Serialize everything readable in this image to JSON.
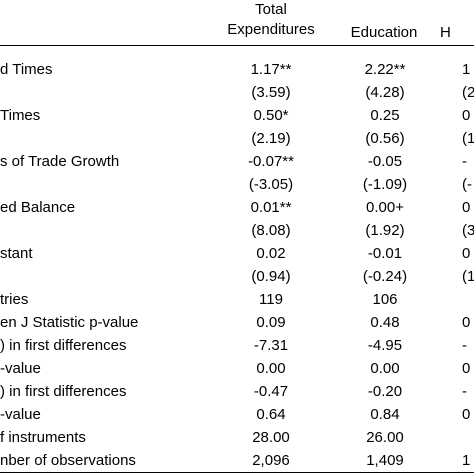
{
  "headers": {
    "total_line1": "Total",
    "total_line2": "Expenditures",
    "education": "Education",
    "third": "H"
  },
  "rows": [
    {
      "label": "d Times",
      "total": "1.17**",
      "education": "2.22**",
      "third": "1"
    },
    {
      "label": "",
      "total": "(3.59)",
      "education": "(4.28)",
      "third": "(2"
    },
    {
      "label": "Times",
      "total": "0.50*",
      "education": "0.25",
      "third": "0"
    },
    {
      "label": "",
      "total": "(2.19)",
      "education": "(0.56)",
      "third": "(1"
    },
    {
      "label": "s of Trade Growth",
      "total": "-0.07**",
      "education": "-0.05",
      "third": "-"
    },
    {
      "label": "",
      "total": "(-3.05)",
      "education": "(-1.09)",
      "third": "(-"
    },
    {
      "label": "ed Balance",
      "total": "0.01**",
      "education": "0.00+",
      "third": "0"
    },
    {
      "label": "",
      "total": "(8.08)",
      "education": "(1.92)",
      "third": "(3"
    },
    {
      "label": "stant",
      "total": "0.02",
      "education": "-0.01",
      "third": "0"
    },
    {
      "label": "",
      "total": "(0.94)",
      "education": "(-0.24)",
      "third": "(1"
    },
    {
      "label": "tries",
      "total": "119",
      "education": "106",
      "third": ""
    },
    {
      "label": "en J Statistic p-value",
      "total": "0.09",
      "education": "0.48",
      "third": "0"
    },
    {
      "label": ") in first differences",
      "total": "-7.31",
      "education": "-4.95",
      "third": "-"
    },
    {
      "label": "-value",
      "total": "0.00",
      "education": "0.00",
      "third": "0"
    },
    {
      "label": ") in first differences",
      "total": "-0.47",
      "education": "-0.20",
      "third": "-"
    },
    {
      "label": "-value",
      "total": "0.64",
      "education": "0.84",
      "third": "0"
    },
    {
      "label": "f instruments",
      "total": "28.00",
      "education": "26.00",
      "third": ""
    },
    {
      "label": "nber of observations",
      "total": "2,096",
      "education": "1,409",
      "third": "1"
    }
  ]
}
